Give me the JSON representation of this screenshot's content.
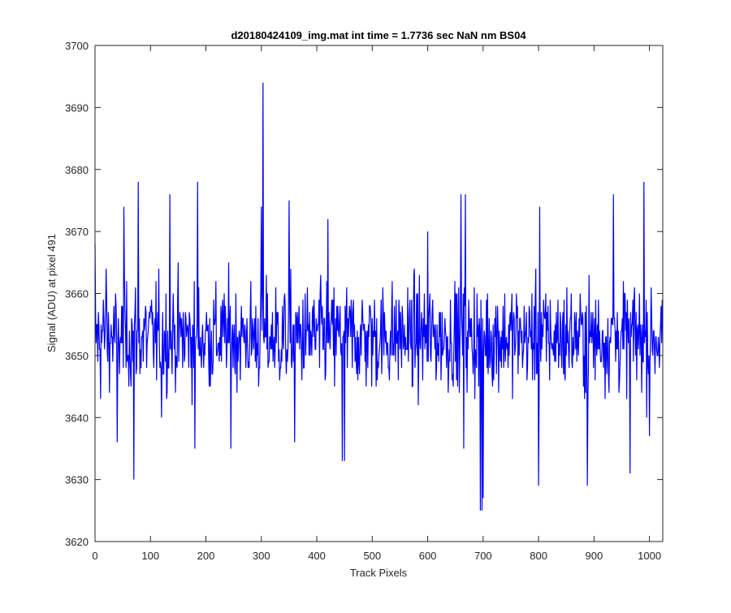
{
  "figure": {
    "background": "#ffffff"
  },
  "chart_data": {
    "type": "line",
    "title": "d20180424109_img.mat int time = 1.7736 sec  NaN nm BS04",
    "xlabel": "Track Pixels",
    "ylabel": "Signal (ADU) at pixel 491",
    "xlim": [
      0,
      1024
    ],
    "ylim": [
      3620,
      3700
    ],
    "xticks": [
      0,
      100,
      200,
      300,
      400,
      500,
      600,
      700,
      800,
      900,
      1000
    ],
    "yticks": [
      3620,
      3630,
      3640,
      3650,
      3660,
      3670,
      3680,
      3690,
      3700
    ],
    "grid": false,
    "legend": "none",
    "series": [
      {
        "color": "#0000ff",
        "n_points": 1024,
        "baseline": 3653,
        "noise_amplitude": 8,
        "x": [
          0,
          10,
          20,
          40,
          52,
          70,
          78,
          120,
          135,
          180,
          185,
          245,
          300,
          303,
          350,
          360,
          420,
          446,
          450,
          600,
          660,
          665,
          668,
          695,
          698,
          700,
          800,
          802,
          888,
          935,
          965,
          990,
          1000
        ],
        "y": [
          3668,
          3643,
          3664,
          3636,
          3674,
          3630,
          3678,
          3640,
          3676,
          3635,
          3678,
          3635,
          3674,
          3694,
          3675,
          3636,
          3672,
          3633,
          3633,
          3670,
          3676,
          3635,
          3676,
          3625,
          3625,
          3627,
          3629,
          3674,
          3629,
          3676,
          3631,
          3678,
          3637
        ]
      }
    ]
  }
}
